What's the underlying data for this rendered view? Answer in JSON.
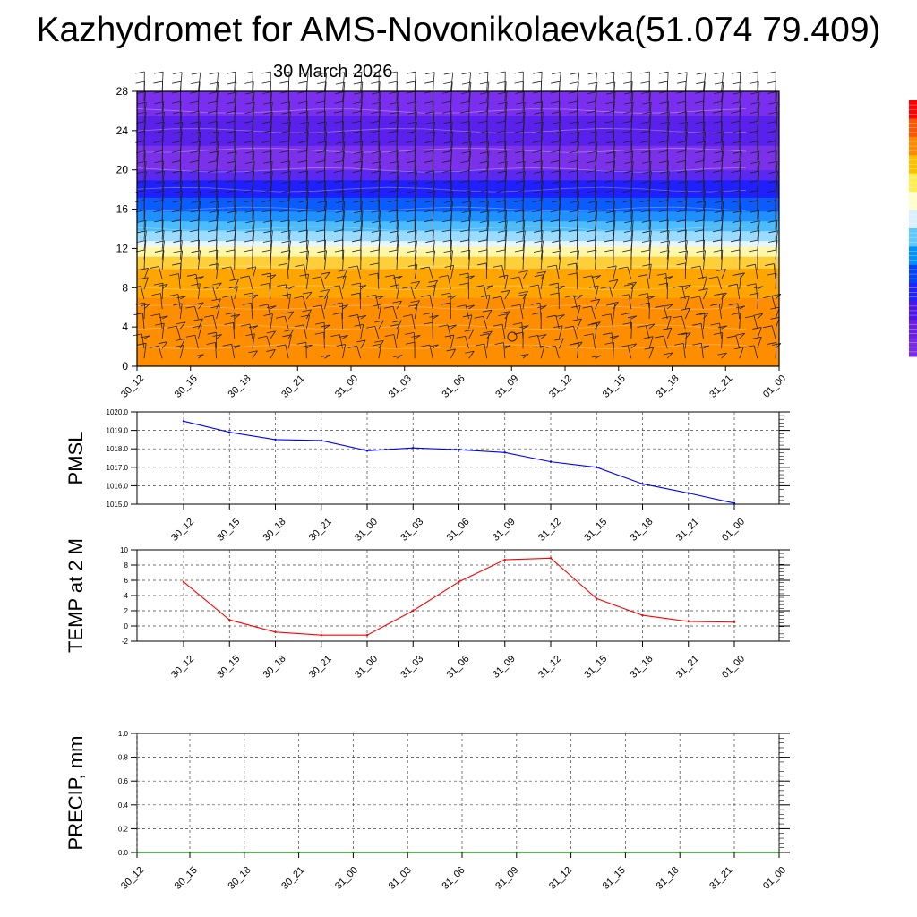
{
  "page": {
    "title": "Kazhydromet for AMS-Novonikolaevka(51.074 79.409)",
    "subtitle": "30 March 2026"
  },
  "colorbar": {
    "colors": [
      "#ff0000",
      "#ff5500",
      "#ff8a00",
      "#ffc000",
      "#ffee50",
      "#ffffcc",
      "#d9f0ff",
      "#5cc8ff",
      "#0090ff",
      "#0044ff",
      "#2222ff",
      "#4b14e8",
      "#6a1ee6",
      "#7a2ae8"
    ]
  },
  "chart_data": [
    {
      "id": "cross-section",
      "type": "heatmap",
      "title": "",
      "xlabel": "",
      "ylabel": "",
      "categories": [
        "30_12",
        "30_15",
        "30_18",
        "30_21",
        "31_00",
        "31_03",
        "31_06",
        "31_09",
        "31_12",
        "31_15",
        "31_18",
        "31_21",
        "01_00"
      ],
      "yticks": [
        0,
        4,
        8,
        12,
        16,
        20,
        24,
        28
      ],
      "ylim": [
        0,
        28
      ],
      "marker_label": "O",
      "bands": [
        {
          "from": 0,
          "to": 7,
          "color": "#ff8d00"
        },
        {
          "from": 7,
          "to": 10,
          "color": "#ffa500"
        },
        {
          "from": 10,
          "to": 11.2,
          "color": "#ffcf3a"
        },
        {
          "from": 11.2,
          "to": 12.2,
          "color": "#fff7a8"
        },
        {
          "from": 12.2,
          "to": 12.8,
          "color": "#e6f6ff"
        },
        {
          "from": 12.8,
          "to": 13.8,
          "color": "#9adcff"
        },
        {
          "from": 13.8,
          "to": 14.8,
          "color": "#4cbcff"
        },
        {
          "from": 14.8,
          "to": 15.8,
          "color": "#1e90ff"
        },
        {
          "from": 15.8,
          "to": 17.2,
          "color": "#0a5cff"
        },
        {
          "from": 17.2,
          "to": 19.0,
          "color": "#2020ff"
        },
        {
          "from": 19.0,
          "to": 20.0,
          "color": "#5a28f0"
        },
        {
          "from": 20.0,
          "to": 22.5,
          "color": "#7b30ea"
        },
        {
          "from": 22.5,
          "to": 25.5,
          "color": "#5a20ec"
        },
        {
          "from": 25.5,
          "to": 28,
          "color": "#7a2ff0"
        }
      ]
    },
    {
      "id": "pmsl",
      "type": "line",
      "title": "",
      "xlabel": "",
      "ylabel": "PMSL",
      "categories": [
        "30_12",
        "30_15",
        "30_18",
        "30_21",
        "31_00",
        "31_03",
        "31_06",
        "31_09",
        "31_12",
        "31_15",
        "31_18",
        "31_21",
        "01_00"
      ],
      "yticks": [
        "1015.0",
        "1016.0",
        "1017.0",
        "1018.0",
        "1019.0",
        "1020.0"
      ],
      "ylim": [
        1015,
        1020
      ],
      "series": [
        {
          "name": "PMSL",
          "color": "#0000ff",
          "values": [
            1019.5,
            1018.9,
            1018.5,
            1018.45,
            1017.9,
            1018.05,
            1017.95,
            1017.8,
            1017.3,
            1017.0,
            1016.1,
            1015.6,
            1015.05
          ]
        }
      ]
    },
    {
      "id": "temp",
      "type": "line",
      "title": "",
      "xlabel": "",
      "ylabel": "TEMP at 2 M",
      "categories": [
        "30_12",
        "30_15",
        "30_18",
        "30_21",
        "31_00",
        "31_03",
        "31_06",
        "31_09",
        "31_12",
        "31_15",
        "31_18",
        "31_21",
        "01_00"
      ],
      "yticks": [
        "-2",
        "0",
        "2",
        "4",
        "6",
        "8",
        "10"
      ],
      "ylim": [
        -2,
        10
      ],
      "series": [
        {
          "name": "TEMP at 2 M",
          "color": "#ff0000",
          "values": [
            5.8,
            0.8,
            -0.8,
            -1.2,
            -1.2,
            2.0,
            5.8,
            8.7,
            8.9,
            3.6,
            1.4,
            0.6,
            0.5
          ]
        }
      ]
    },
    {
      "id": "precip",
      "type": "line",
      "title": "",
      "xlabel": "",
      "ylabel": "PRECIP, mm",
      "categories": [
        "30_12",
        "30_15",
        "30_18",
        "30_21",
        "31_00",
        "31_03",
        "31_06",
        "31_09",
        "31_12",
        "31_15",
        "31_18",
        "31_21",
        "01_00"
      ],
      "yticks": [
        "0.0",
        "0.2",
        "0.4",
        "0.6",
        "0.8",
        "1.0"
      ],
      "ylim": [
        0,
        1
      ],
      "series": [
        {
          "name": "PRECIP",
          "color": "#008000",
          "values": [
            0,
            0,
            0,
            0,
            0,
            0,
            0,
            0,
            0,
            0,
            0,
            0,
            0
          ]
        }
      ]
    }
  ]
}
